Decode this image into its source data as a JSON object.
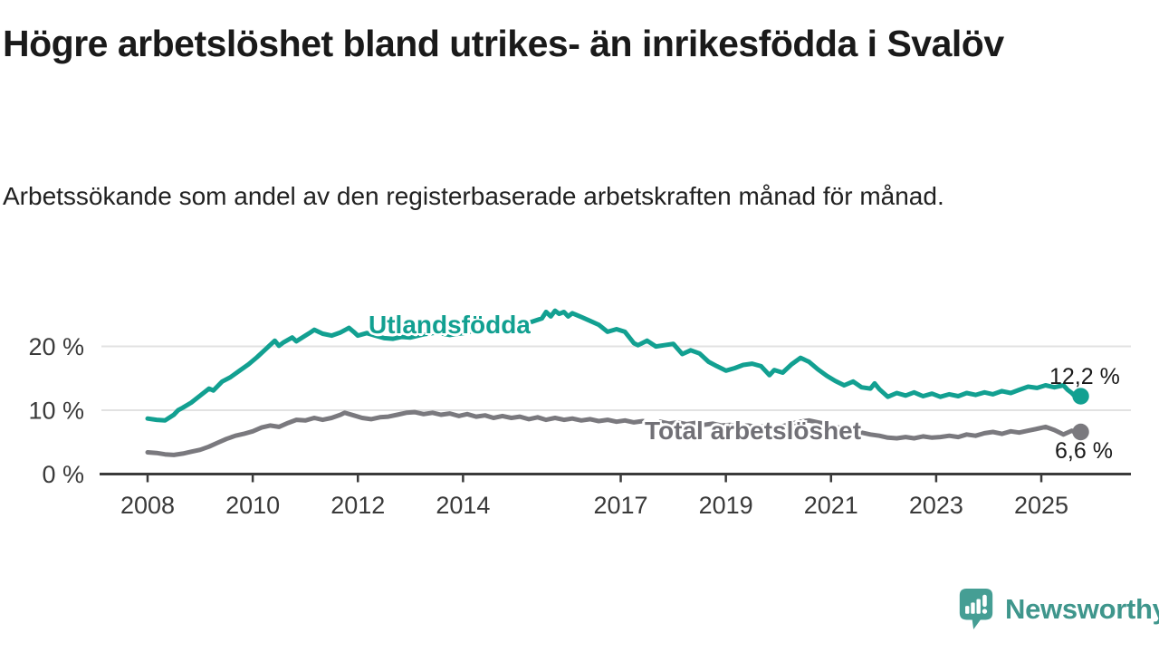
{
  "title": "Högre arbetslöshet bland utrikes- än inrikesfödda i Svalöv",
  "subtitle": "Arbetssökande som andel av den registerbaserade arbetskraften månad för månad.",
  "branding": {
    "logo_text": "Newsworthy",
    "logo_icon": "newsworthy-speech-bubble-chart-icon"
  },
  "colors": {
    "background": "#ffffff",
    "title_text": "#1a1a1a",
    "subtitle_text": "#212121",
    "tick_text": "#3a3a3a",
    "gridline": "#e2e2e2",
    "axis": "#3a3a3a",
    "teal_accent": "#12a091",
    "gray_series": "#7a797e",
    "gray_label": "#717076",
    "logo_icon_teal": "#459e94",
    "logo_text_teal": "#3f968c"
  },
  "chart_data": {
    "type": "line",
    "x_unit": "year (monthly observations)",
    "y_unit": "percent of registered labour force",
    "grid": "horizontal",
    "ylim": [
      0,
      27
    ],
    "xlim": [
      2007.1,
      2026.7
    ],
    "x_ticks": [
      {
        "label": "2008",
        "year": 2008
      },
      {
        "label": "2010",
        "year": 2010
      },
      {
        "label": "2012",
        "year": 2012
      },
      {
        "label": "2014",
        "year": 2014
      },
      {
        "label": "2017",
        "year": 2017
      },
      {
        "label": "2019",
        "year": 2019
      },
      {
        "label": "2021",
        "year": 2021
      },
      {
        "label": "2023",
        "year": 2023
      },
      {
        "label": "2025",
        "year": 2025
      }
    ],
    "y_ticks": [
      {
        "label": "0 %",
        "value": 0
      },
      {
        "label": "10 %",
        "value": 10
      },
      {
        "label": "20 %",
        "value": 20
      }
    ],
    "series": [
      {
        "name": "Utlandsfödda",
        "color": "#12a091",
        "end_label": "12,2 %",
        "end_value": 12.2,
        "points": [
          [
            2008.0,
            8.7
          ],
          [
            2008.17,
            8.5
          ],
          [
            2008.33,
            8.4
          ],
          [
            2008.5,
            9.3
          ],
          [
            2008.58,
            10.0
          ],
          [
            2008.67,
            10.4
          ],
          [
            2008.83,
            11.2
          ],
          [
            2009.0,
            12.3
          ],
          [
            2009.17,
            13.4
          ],
          [
            2009.25,
            13.1
          ],
          [
            2009.42,
            14.5
          ],
          [
            2009.58,
            15.2
          ],
          [
            2009.75,
            16.2
          ],
          [
            2009.92,
            17.2
          ],
          [
            2010.08,
            18.3
          ],
          [
            2010.25,
            19.6
          ],
          [
            2010.42,
            20.9
          ],
          [
            2010.5,
            20.1
          ],
          [
            2010.58,
            20.6
          ],
          [
            2010.75,
            21.4
          ],
          [
            2010.83,
            20.8
          ],
          [
            2011.0,
            21.7
          ],
          [
            2011.08,
            22.1
          ],
          [
            2011.17,
            22.6
          ],
          [
            2011.33,
            22.0
          ],
          [
            2011.5,
            21.7
          ],
          [
            2011.67,
            22.2
          ],
          [
            2011.83,
            22.9
          ],
          [
            2011.92,
            22.3
          ],
          [
            2012.0,
            21.7
          ],
          [
            2012.17,
            22.1
          ],
          [
            2012.33,
            21.7
          ],
          [
            2012.5,
            21.3
          ],
          [
            2012.67,
            21.2
          ],
          [
            2012.83,
            21.5
          ],
          [
            2013.0,
            21.4
          ],
          [
            2013.25,
            21.9
          ],
          [
            2013.5,
            22.2
          ],
          [
            2013.75,
            21.8
          ],
          [
            2014.0,
            22.1
          ],
          [
            2014.25,
            22.5
          ],
          [
            2014.5,
            22.9
          ],
          [
            2014.75,
            23.3
          ],
          [
            2015.0,
            23.1
          ],
          [
            2015.25,
            23.7
          ],
          [
            2015.5,
            24.4
          ],
          [
            2015.58,
            25.4
          ],
          [
            2015.67,
            24.7
          ],
          [
            2015.75,
            25.6
          ],
          [
            2015.83,
            25.1
          ],
          [
            2015.92,
            25.4
          ],
          [
            2016.0,
            24.7
          ],
          [
            2016.08,
            25.2
          ],
          [
            2016.25,
            24.6
          ],
          [
            2016.42,
            24.0
          ],
          [
            2016.58,
            23.4
          ],
          [
            2016.75,
            22.3
          ],
          [
            2016.92,
            22.7
          ],
          [
            2017.08,
            22.3
          ],
          [
            2017.25,
            20.5
          ],
          [
            2017.33,
            20.2
          ],
          [
            2017.5,
            20.9
          ],
          [
            2017.67,
            20.0
          ],
          [
            2017.83,
            20.2
          ],
          [
            2018.0,
            20.4
          ],
          [
            2018.17,
            18.8
          ],
          [
            2018.33,
            19.4
          ],
          [
            2018.5,
            18.9
          ],
          [
            2018.67,
            17.6
          ],
          [
            2018.83,
            16.9
          ],
          [
            2019.0,
            16.2
          ],
          [
            2019.17,
            16.6
          ],
          [
            2019.33,
            17.1
          ],
          [
            2019.5,
            17.3
          ],
          [
            2019.67,
            16.9
          ],
          [
            2019.83,
            15.5
          ],
          [
            2019.92,
            16.3
          ],
          [
            2020.08,
            15.9
          ],
          [
            2020.25,
            17.2
          ],
          [
            2020.42,
            18.2
          ],
          [
            2020.58,
            17.6
          ],
          [
            2020.75,
            16.4
          ],
          [
            2020.92,
            15.4
          ],
          [
            2021.08,
            14.6
          ],
          [
            2021.25,
            13.9
          ],
          [
            2021.42,
            14.5
          ],
          [
            2021.58,
            13.6
          ],
          [
            2021.75,
            13.4
          ],
          [
            2021.83,
            14.2
          ],
          [
            2021.92,
            13.3
          ],
          [
            2022.08,
            12.1
          ],
          [
            2022.25,
            12.7
          ],
          [
            2022.42,
            12.3
          ],
          [
            2022.58,
            12.8
          ],
          [
            2022.75,
            12.2
          ],
          [
            2022.92,
            12.6
          ],
          [
            2023.08,
            12.1
          ],
          [
            2023.25,
            12.5
          ],
          [
            2023.42,
            12.2
          ],
          [
            2023.58,
            12.7
          ],
          [
            2023.75,
            12.4
          ],
          [
            2023.92,
            12.8
          ],
          [
            2024.08,
            12.5
          ],
          [
            2024.25,
            13.0
          ],
          [
            2024.42,
            12.7
          ],
          [
            2024.58,
            13.2
          ],
          [
            2024.75,
            13.7
          ],
          [
            2024.92,
            13.5
          ],
          [
            2025.08,
            13.9
          ],
          [
            2025.25,
            13.6
          ],
          [
            2025.42,
            13.9
          ],
          [
            2025.5,
            13.2
          ],
          [
            2025.58,
            12.7
          ],
          [
            2025.67,
            11.9
          ],
          [
            2025.75,
            12.2
          ]
        ]
      },
      {
        "name": "Total arbetslöshet",
        "color": "#7a797e",
        "end_label": "6,6 %",
        "end_value": 6.6,
        "points": [
          [
            2008.0,
            3.4
          ],
          [
            2008.17,
            3.3
          ],
          [
            2008.33,
            3.1
          ],
          [
            2008.5,
            3.0
          ],
          [
            2008.67,
            3.2
          ],
          [
            2008.83,
            3.5
          ],
          [
            2009.0,
            3.8
          ],
          [
            2009.17,
            4.3
          ],
          [
            2009.33,
            4.9
          ],
          [
            2009.5,
            5.5
          ],
          [
            2009.67,
            6.0
          ],
          [
            2009.83,
            6.3
          ],
          [
            2010.0,
            6.7
          ],
          [
            2010.17,
            7.3
          ],
          [
            2010.33,
            7.6
          ],
          [
            2010.5,
            7.4
          ],
          [
            2010.67,
            8.0
          ],
          [
            2010.83,
            8.5
          ],
          [
            2011.0,
            8.4
          ],
          [
            2011.17,
            8.8
          ],
          [
            2011.33,
            8.5
          ],
          [
            2011.5,
            8.8
          ],
          [
            2011.67,
            9.3
          ],
          [
            2011.75,
            9.6
          ],
          [
            2011.92,
            9.2
          ],
          [
            2012.08,
            8.8
          ],
          [
            2012.25,
            8.6
          ],
          [
            2012.42,
            8.9
          ],
          [
            2012.58,
            9.0
          ],
          [
            2012.75,
            9.3
          ],
          [
            2012.92,
            9.6
          ],
          [
            2013.08,
            9.7
          ],
          [
            2013.25,
            9.4
          ],
          [
            2013.42,
            9.6
          ],
          [
            2013.58,
            9.3
          ],
          [
            2013.75,
            9.5
          ],
          [
            2013.92,
            9.1
          ],
          [
            2014.08,
            9.4
          ],
          [
            2014.25,
            9.0
          ],
          [
            2014.42,
            9.2
          ],
          [
            2014.58,
            8.8
          ],
          [
            2014.75,
            9.1
          ],
          [
            2014.92,
            8.8
          ],
          [
            2015.08,
            9.0
          ],
          [
            2015.25,
            8.6
          ],
          [
            2015.42,
            8.9
          ],
          [
            2015.58,
            8.5
          ],
          [
            2015.75,
            8.8
          ],
          [
            2015.92,
            8.5
          ],
          [
            2016.08,
            8.7
          ],
          [
            2016.25,
            8.4
          ],
          [
            2016.42,
            8.6
          ],
          [
            2016.58,
            8.3
          ],
          [
            2016.75,
            8.5
          ],
          [
            2016.92,
            8.2
          ],
          [
            2017.08,
            8.4
          ],
          [
            2017.25,
            8.1
          ],
          [
            2017.42,
            8.3
          ],
          [
            2017.58,
            8.0
          ],
          [
            2017.75,
            8.2
          ],
          [
            2017.92,
            7.9
          ],
          [
            2018.08,
            8.1
          ],
          [
            2018.25,
            7.8
          ],
          [
            2018.42,
            8.0
          ],
          [
            2018.58,
            7.7
          ],
          [
            2018.75,
            7.9
          ],
          [
            2018.92,
            7.6
          ],
          [
            2019.08,
            7.7
          ],
          [
            2019.25,
            7.5
          ],
          [
            2019.42,
            7.6
          ],
          [
            2019.58,
            7.4
          ],
          [
            2019.75,
            7.5
          ],
          [
            2019.92,
            7.3
          ],
          [
            2020.08,
            7.5
          ],
          [
            2020.25,
            7.9
          ],
          [
            2020.42,
            8.2
          ],
          [
            2020.58,
            8.4
          ],
          [
            2020.75,
            8.1
          ],
          [
            2020.92,
            7.8
          ],
          [
            2021.08,
            7.4
          ],
          [
            2021.25,
            7.1
          ],
          [
            2021.42,
            6.8
          ],
          [
            2021.58,
            6.5
          ],
          [
            2021.75,
            6.2
          ],
          [
            2021.92,
            6.0
          ],
          [
            2022.08,
            5.7
          ],
          [
            2022.25,
            5.6
          ],
          [
            2022.42,
            5.8
          ],
          [
            2022.58,
            5.6
          ],
          [
            2022.75,
            5.9
          ],
          [
            2022.92,
            5.7
          ],
          [
            2023.08,
            5.8
          ],
          [
            2023.25,
            6.0
          ],
          [
            2023.42,
            5.8
          ],
          [
            2023.58,
            6.2
          ],
          [
            2023.75,
            6.0
          ],
          [
            2023.92,
            6.4
          ],
          [
            2024.08,
            6.6
          ],
          [
            2024.25,
            6.3
          ],
          [
            2024.42,
            6.7
          ],
          [
            2024.58,
            6.5
          ],
          [
            2024.75,
            6.8
          ],
          [
            2024.92,
            7.1
          ],
          [
            2025.08,
            7.4
          ],
          [
            2025.25,
            6.9
          ],
          [
            2025.42,
            6.2
          ],
          [
            2025.58,
            6.8
          ],
          [
            2025.67,
            6.4
          ],
          [
            2025.75,
            6.6
          ]
        ]
      }
    ]
  }
}
